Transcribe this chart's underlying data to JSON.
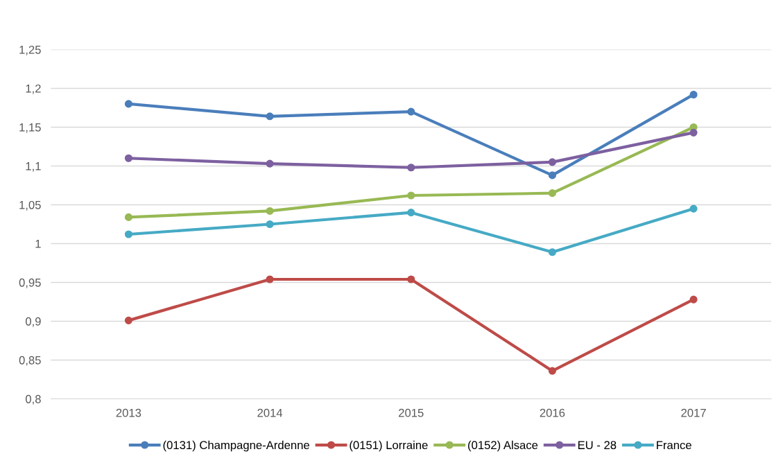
{
  "chart_data": {
    "type": "line",
    "categories": [
      "2013",
      "2014",
      "2015",
      "2016",
      "2017"
    ],
    "series": [
      {
        "name": "(0131) Champagne-Ardenne",
        "color": "#4a7ebb",
        "values": [
          1.18,
          1.164,
          1.17,
          1.088,
          1.192
        ]
      },
      {
        "name": "(0151) Lorraine",
        "color": "#be4b48",
        "values": [
          0.901,
          0.954,
          0.954,
          0.836,
          0.928
        ]
      },
      {
        "name": "(0152) Alsace",
        "color": "#98b954",
        "values": [
          1.034,
          1.042,
          1.062,
          1.065,
          1.15
        ]
      },
      {
        "name": "EU - 28",
        "color": "#7d60a0",
        "values": [
          1.11,
          1.103,
          1.098,
          1.105,
          1.143
        ]
      },
      {
        "name": "France",
        "color": "#46aac5",
        "values": [
          1.012,
          1.025,
          1.04,
          0.989,
          1.045
        ]
      }
    ],
    "ylim": [
      0.8,
      1.25
    ],
    "yticks": [
      {
        "value": 0.8,
        "label": "0,8"
      },
      {
        "value": 0.85,
        "label": "0,85"
      },
      {
        "value": 0.9,
        "label": "0,9"
      },
      {
        "value": 0.95,
        "label": "0,95"
      },
      {
        "value": 1,
        "label": "1"
      },
      {
        "value": 1.05,
        "label": "1,05"
      },
      {
        "value": 1.1,
        "label": "1,1"
      },
      {
        "value": 1.15,
        "label": "1,15"
      },
      {
        "value": 1.2,
        "label": "1,2"
      },
      {
        "value": 1.25,
        "label": "1,25"
      }
    ],
    "grid": "y",
    "legend": "bottom",
    "marker": "circle",
    "line_style": "solid"
  }
}
